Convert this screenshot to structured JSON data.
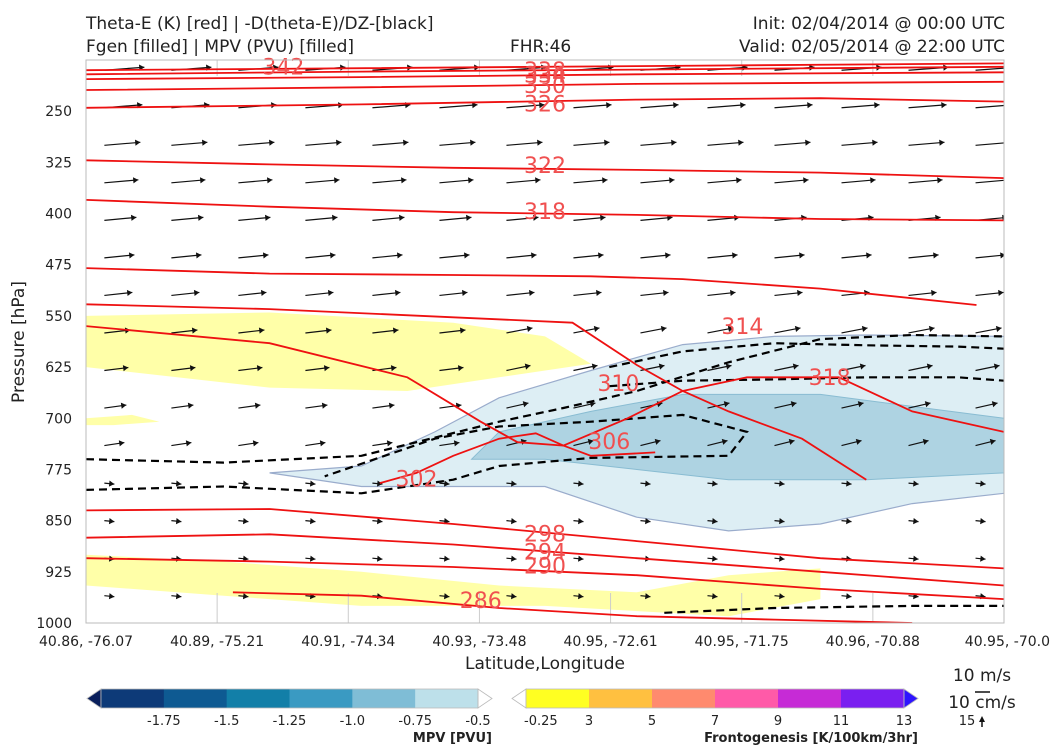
{
  "header": {
    "title_left_1": "Theta-E (K) [red] | -D(theta-E)/DZ-[black]",
    "title_left_2": "Fgen [filled] | MPV (PVU) [filled]",
    "fhr": "FHR:46",
    "init": "Init: 02/04/2014 @ 00:00 UTC",
    "valid": "Valid: 02/05/2014 @ 22:00 UTC"
  },
  "colors": {
    "theta_e": "#ee1111",
    "theta_e_label": "#f05050",
    "neg_dthetae_dz": "#000000",
    "mpv_fill": "#a9cfe0",
    "fgen_fill": "#ffff99"
  },
  "chart_data": {
    "type": "cross-section",
    "xlabel": "Latitude,Longitude",
    "ylabel": "Pressure [hPa]",
    "y_scale": "linear, inverted",
    "ylim": [
      1000,
      175
    ],
    "yticks": [
      250,
      325,
      400,
      475,
      550,
      625,
      700,
      775,
      850,
      925,
      1000
    ],
    "xticks": [
      "40.86, -76.07",
      "40.89, -75.21",
      "40.91, -74.34",
      "40.93, -73.48",
      "40.95, -72.61",
      "40.95, -71.75",
      "40.96, -70.88",
      "40.95, -70.0"
    ],
    "theta_e_contours": [
      {
        "value": 342,
        "label": "342",
        "points": [
          [
            0,
            190
          ],
          [
            0.2,
            188
          ],
          [
            0.6,
            184
          ],
          [
            1,
            180
          ]
        ]
      },
      {
        "value": 338,
        "label": "338",
        "points": [
          [
            0,
            196
          ],
          [
            0.3,
            192
          ],
          [
            0.6,
            189
          ],
          [
            1,
            185
          ]
        ]
      },
      {
        "value": 334,
        "label": "334",
        "points": [
          [
            0,
            203
          ],
          [
            0.3,
            200
          ],
          [
            0.6,
            196
          ],
          [
            1,
            193
          ]
        ]
      },
      {
        "value": 330,
        "label": "330",
        "points": [
          [
            0,
            219
          ],
          [
            0.3,
            215
          ],
          [
            0.6,
            210
          ],
          [
            1,
            207
          ]
        ]
      },
      {
        "value": 326,
        "label": "326",
        "points": [
          [
            0,
            245
          ],
          [
            0.3,
            240
          ],
          [
            0.6,
            233
          ],
          [
            0.8,
            231
          ],
          [
            1,
            236
          ]
        ]
      },
      {
        "value": 322,
        "label": "322",
        "points": [
          [
            0,
            322
          ],
          [
            0.2,
            328
          ],
          [
            0.4,
            333
          ],
          [
            0.6,
            336
          ],
          [
            0.8,
            340
          ],
          [
            1,
            348
          ]
        ]
      },
      {
        "value": 318,
        "label": "318",
        "points": [
          [
            0,
            380
          ],
          [
            0.2,
            390
          ],
          [
            0.4,
            398
          ],
          [
            0.6,
            402
          ],
          [
            0.8,
            408
          ],
          [
            1,
            410
          ]
        ]
      },
      {
        "value": 314,
        "label": "314",
        "points": [
          [
            0,
            480
          ],
          [
            0.2,
            488
          ],
          [
            0.4,
            490
          ],
          [
            0.55,
            492
          ],
          [
            0.65,
            496
          ],
          [
            0.8,
            510
          ],
          [
            0.97,
            534
          ]
        ]
      },
      {
        "value": 310,
        "label": "310",
        "points": [
          [
            0,
            533
          ],
          [
            0.2,
            540
          ],
          [
            0.4,
            552
          ],
          [
            0.53,
            560
          ],
          [
            0.6,
            622
          ],
          [
            0.65,
            660
          ],
          [
            0.7,
            690
          ],
          [
            0.78,
            730
          ],
          [
            0.85,
            790
          ]
        ]
      },
      {
        "value": 306,
        "label": "306",
        "points": [
          [
            0,
            565
          ],
          [
            0.2,
            590
          ],
          [
            0.35,
            640
          ],
          [
            0.43,
            705
          ],
          [
            0.47,
            735
          ],
          [
            0.52,
            740
          ],
          [
            0.59,
            700
          ],
          [
            0.65,
            660
          ],
          [
            0.72,
            640
          ],
          [
            0.82,
            640
          ],
          [
            0.9,
            690
          ],
          [
            1,
            720
          ]
        ]
      },
      {
        "value": 302,
        "label": "302",
        "points": [
          [
            0.32,
            795
          ],
          [
            0.36,
            780
          ],
          [
            0.4,
            755
          ],
          [
            0.45,
            730
          ],
          [
            0.49,
            722
          ],
          [
            0.52,
            740
          ],
          [
            0.55,
            755
          ],
          [
            0.62,
            750
          ]
        ]
      },
      {
        "value": 298,
        "label": "298",
        "points": [
          [
            0,
            835
          ],
          [
            0.2,
            833
          ],
          [
            0.4,
            855
          ],
          [
            0.6,
            880
          ],
          [
            0.8,
            905
          ],
          [
            1,
            920
          ]
        ]
      },
      {
        "value": 294,
        "label": "294",
        "points": [
          [
            0,
            875
          ],
          [
            0.2,
            870
          ],
          [
            0.4,
            885
          ],
          [
            0.6,
            905
          ],
          [
            0.8,
            925
          ],
          [
            1,
            945
          ]
        ]
      },
      {
        "value": 290,
        "label": "290",
        "points": [
          [
            0,
            905
          ],
          [
            0.2,
            910
          ],
          [
            0.4,
            918
          ],
          [
            0.6,
            930
          ],
          [
            0.8,
            950
          ],
          [
            1,
            965
          ]
        ]
      },
      {
        "value": 286,
        "label": "286",
        "points": [
          [
            0.16,
            955
          ],
          [
            0.3,
            960
          ],
          [
            0.45,
            978
          ],
          [
            0.6,
            990
          ],
          [
            0.75,
            995
          ],
          [
            0.9,
            1000
          ]
        ]
      }
    ],
    "theta_e_label_positions": [
      {
        "label": "342",
        "x": 0.215,
        "p": 186
      },
      {
        "label": "338",
        "x": 0.5,
        "p": 191
      },
      {
        "label": "334",
        "x": 0.5,
        "p": 198
      },
      {
        "label": "330",
        "x": 0.5,
        "p": 213
      },
      {
        "label": "326",
        "x": 0.5,
        "p": 240
      },
      {
        "label": "322",
        "x": 0.5,
        "p": 330
      },
      {
        "label": "318",
        "x": 0.5,
        "p": 398
      },
      {
        "label": "314",
        "x": 0.715,
        "p": 566
      },
      {
        "label": "310",
        "x": 0.58,
        "p": 650
      },
      {
        "label": "306",
        "x": 0.57,
        "p": 735
      },
      {
        "label": "302",
        "x": 0.36,
        "p": 790
      },
      {
        "label": "298",
        "x": 0.5,
        "p": 870
      },
      {
        "label": "294",
        "x": 0.5,
        "p": 897
      },
      {
        "label": "290",
        "x": 0.5,
        "p": 917
      },
      {
        "label": "286",
        "x": 0.43,
        "p": 968
      }
    ],
    "extra_theta_e_label": {
      "label": "318",
      "x": 0.81,
      "p": 641
    },
    "neg_dthetae_dz_contours": [
      [
        [
          0,
          760
        ],
        [
          0.15,
          765
        ],
        [
          0.3,
          755
        ],
        [
          0.45,
          705
        ],
        [
          0.52,
          685
        ],
        [
          0.6,
          660
        ],
        [
          0.7,
          618
        ],
        [
          0.8,
          584
        ],
        [
          0.9,
          578
        ],
        [
          1,
          580
        ]
      ],
      [
        [
          0,
          805
        ],
        [
          0.15,
          800
        ],
        [
          0.3,
          810
        ],
        [
          0.4,
          790
        ],
        [
          0.45,
          770
        ],
        [
          0.55,
          758
        ],
        [
          0.7,
          755
        ],
        [
          0.72,
          720
        ],
        [
          0.65,
          695
        ],
        [
          0.55,
          705
        ],
        [
          0.45,
          712
        ],
        [
          0.38,
          730
        ],
        [
          0.26,
          785
        ]
      ],
      [
        [
          0.57,
          625
        ],
        [
          0.65,
          602
        ],
        [
          0.75,
          590
        ],
        [
          0.85,
          593
        ],
        [
          0.95,
          595
        ],
        [
          1,
          598
        ]
      ],
      [
        [
          0.57,
          653
        ],
        [
          0.65,
          645
        ],
        [
          0.75,
          643
        ],
        [
          0.85,
          640
        ],
        [
          0.95,
          640
        ],
        [
          1,
          645
        ]
      ],
      [
        [
          0.63,
          985
        ],
        [
          0.75,
          978
        ],
        [
          0.9,
          975
        ],
        [
          1,
          975
        ]
      ]
    ],
    "mpv_region": [
      [
        0.2,
        780
      ],
      [
        0.3,
        770
      ],
      [
        0.38,
        720
      ],
      [
        0.45,
        670
      ],
      [
        0.55,
        630
      ],
      [
        0.65,
        592
      ],
      [
        0.75,
        580
      ],
      [
        0.85,
        578
      ],
      [
        1,
        580
      ],
      [
        1,
        810
      ],
      [
        0.9,
        825
      ],
      [
        0.8,
        855
      ],
      [
        0.7,
        865
      ],
      [
        0.6,
        845
      ],
      [
        0.5,
        800
      ],
      [
        0.4,
        800
      ],
      [
        0.3,
        800
      ]
    ],
    "mpv_core": [
      [
        0.42,
        760
      ],
      [
        0.45,
        720
      ],
      [
        0.55,
        690
      ],
      [
        0.65,
        665
      ],
      [
        0.8,
        665
      ],
      [
        1,
        700
      ],
      [
        1,
        780
      ],
      [
        0.85,
        790
      ],
      [
        0.7,
        790
      ],
      [
        0.6,
        775
      ],
      [
        0.5,
        760
      ]
    ],
    "fgen_regions": [
      [
        [
          0,
          550
        ],
        [
          0.2,
          545
        ],
        [
          0.4,
          560
        ],
        [
          0.5,
          580
        ],
        [
          0.55,
          620
        ],
        [
          0.45,
          640
        ],
        [
          0.35,
          660
        ],
        [
          0.2,
          655
        ],
        [
          0,
          625
        ]
      ],
      [
        [
          0,
          700
        ],
        [
          0.05,
          695
        ],
        [
          0.08,
          705
        ],
        [
          0.03,
          710
        ],
        [
          0,
          710
        ]
      ],
      [
        [
          0,
          900
        ],
        [
          0.15,
          910
        ],
        [
          0.3,
          925
        ],
        [
          0.45,
          945
        ],
        [
          0.6,
          955
        ],
        [
          0.7,
          930
        ],
        [
          0.8,
          920
        ],
        [
          0.8,
          965
        ],
        [
          0.7,
          990
        ],
        [
          0.5,
          975
        ],
        [
          0.3,
          975
        ],
        [
          0.15,
          960
        ],
        [
          0,
          945
        ]
      ],
      [
        [
          0.95,
          660
        ],
        [
          1,
          625
        ],
        [
          1,
          700
        ],
        [
          0.95,
          690
        ]
      ],
      [
        [
          0.98,
          780
        ],
        [
          1,
          770
        ],
        [
          1,
          800
        ]
      ]
    ],
    "wind_vector_reference": {
      "speed_label": "10 m/s",
      "vertical_label": "10 cm/s"
    },
    "colorbar_mpv": {
      "title": "MPV [PVU]",
      "ticks": [
        "-1.75",
        "-1.5",
        "-1.25",
        "-1.0",
        "-0.75",
        "-0.5",
        "-0.25"
      ],
      "colors": [
        "#0a1f5c",
        "#0d3a78",
        "#0e5a92",
        "#127fa8",
        "#3a9ac2",
        "#7fbdd6",
        "#bde0ea",
        "#ffffff"
      ]
    },
    "colorbar_fgen": {
      "title": "Frontogenesis [K/100km/3hr]",
      "ticks": [
        "3",
        "5",
        "7",
        "9",
        "11",
        "13",
        "15"
      ],
      "colors": [
        "#ffffff",
        "#ffff22",
        "#ffc040",
        "#ff8a6e",
        "#ff5aa8",
        "#c62bd6",
        "#7a1ff0",
        "#2f14ff"
      ]
    }
  }
}
